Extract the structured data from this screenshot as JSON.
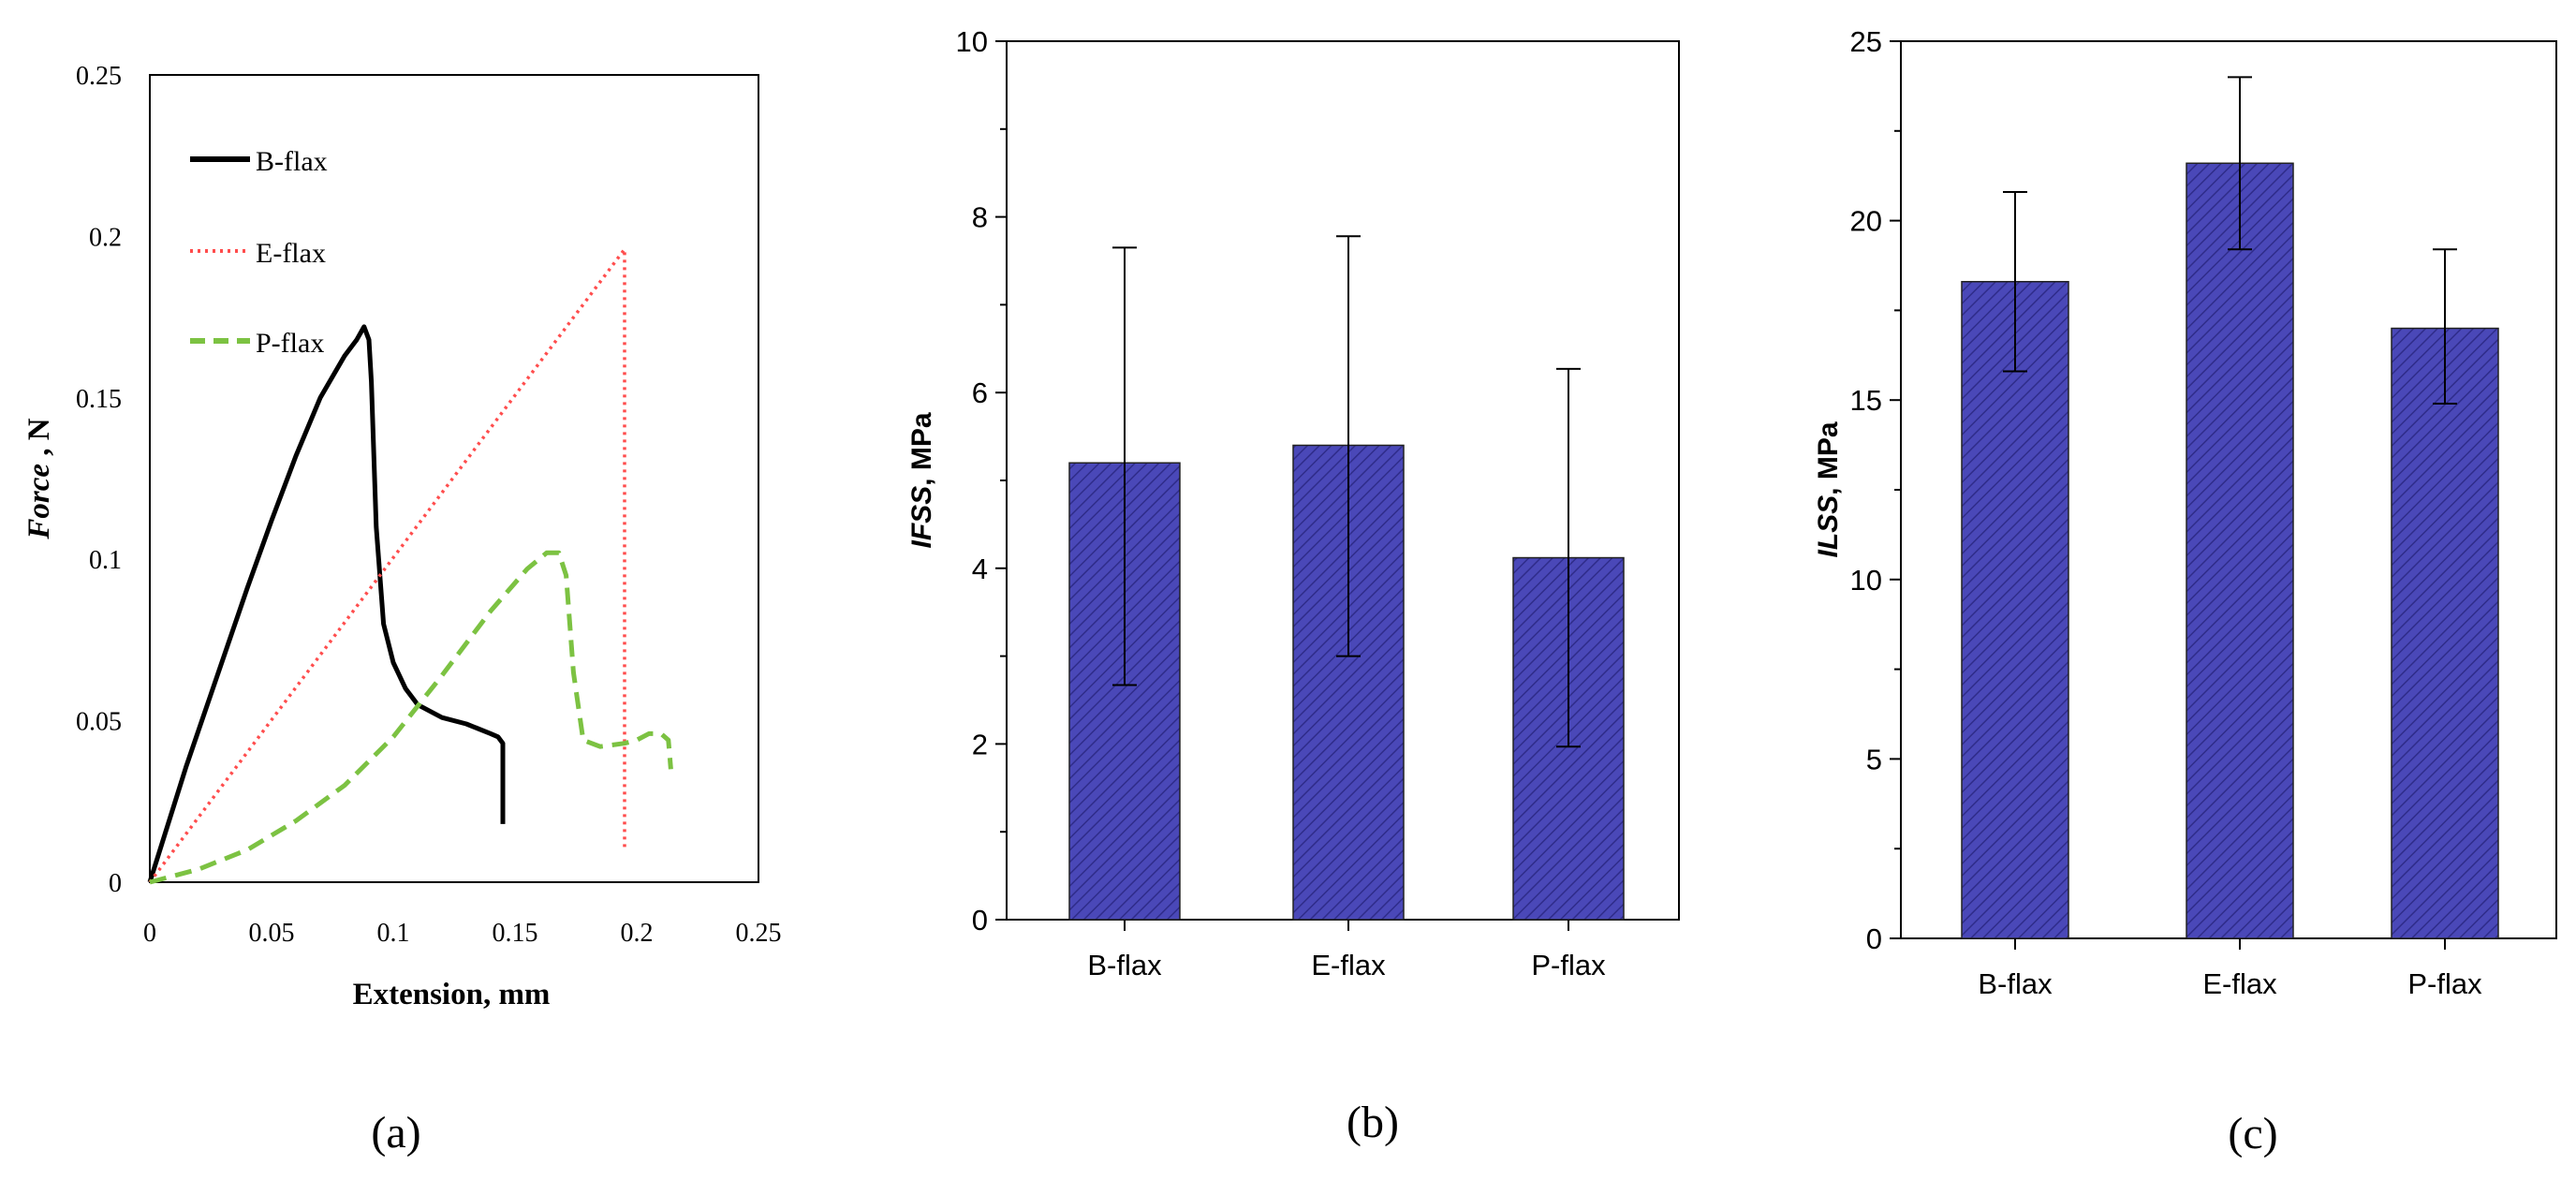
{
  "chart_data": [
    {
      "type": "line",
      "panel_label": "(a)",
      "xlabel": "Extension, mm",
      "ylabel_italic": "Force",
      "ylabel_rest": " , N",
      "xlim": [
        0,
        0.25
      ],
      "ylim": [
        0,
        0.25
      ],
      "xticks": [
        "0",
        "0.05",
        "0.1",
        "0.15",
        "0.2",
        "0.25"
      ],
      "yticks": [
        "0",
        "0.05",
        "0.1",
        "0.15",
        "0.2",
        "0.25"
      ],
      "legend_position": "top-left",
      "series": [
        {
          "name": "B-flax",
          "style": "solid",
          "color": "#000000",
          "x": [
            0,
            0.005,
            0.01,
            0.015,
            0.02,
            0.025,
            0.03,
            0.04,
            0.05,
            0.06,
            0.07,
            0.08,
            0.085,
            0.088,
            0.09,
            0.091,
            0.093,
            0.096,
            0.1,
            0.105,
            0.11,
            0.115,
            0.12,
            0.13,
            0.14,
            0.143,
            0.145,
            0.145
          ],
          "y": [
            0,
            0.012,
            0.024,
            0.036,
            0.047,
            0.058,
            0.069,
            0.091,
            0.112,
            0.132,
            0.15,
            0.163,
            0.168,
            0.172,
            0.168,
            0.155,
            0.11,
            0.08,
            0.068,
            0.06,
            0.055,
            0.053,
            0.051,
            0.049,
            0.046,
            0.045,
            0.043,
            0.018
          ]
        },
        {
          "name": "E-flax",
          "style": "dotted",
          "color": "#ff4d4d",
          "x": [
            0,
            0.195,
            0.195
          ],
          "y": [
            0,
            0.196,
            0.01
          ]
        },
        {
          "name": "P-flax",
          "style": "dashed",
          "color": "#7cc242",
          "x": [
            0,
            0.02,
            0.04,
            0.06,
            0.08,
            0.1,
            0.12,
            0.14,
            0.155,
            0.163,
            0.168,
            0.171,
            0.174,
            0.178,
            0.185,
            0.195,
            0.2,
            0.205,
            0.21,
            0.213,
            0.214
          ],
          "y": [
            0,
            0.004,
            0.01,
            0.019,
            0.03,
            0.045,
            0.064,
            0.084,
            0.097,
            0.102,
            0.102,
            0.095,
            0.065,
            0.044,
            0.042,
            0.043,
            0.044,
            0.046,
            0.046,
            0.044,
            0.035
          ]
        }
      ]
    },
    {
      "type": "bar",
      "panel_label": "(b)",
      "ylabel_italic": "IFSS",
      "ylabel_rest": ", MPa",
      "categories": [
        "B-flax",
        "E-flax",
        "P-flax"
      ],
      "values": [
        5.2,
        5.4,
        4.12
      ],
      "error_low": [
        2.67,
        3.0,
        1.97
      ],
      "error_high": [
        7.65,
        7.78,
        6.27
      ],
      "ylim": [
        0,
        10
      ],
      "yticks": [
        "0",
        "2",
        "4",
        "6",
        "8",
        "10"
      ],
      "bar_color": "#4a48b8"
    },
    {
      "type": "bar",
      "panel_label": "(c)",
      "ylabel_italic": "ILSS",
      "ylabel_rest": ", MPa",
      "categories": [
        "B-flax",
        "E-flax",
        "P-flax"
      ],
      "values": [
        18.3,
        21.6,
        17.0
      ],
      "error_low": [
        15.8,
        19.2,
        14.9
      ],
      "error_high": [
        20.8,
        24.0,
        19.2
      ],
      "ylim": [
        0,
        25
      ],
      "yticks": [
        "0",
        "5",
        "10",
        "15",
        "20",
        "25"
      ],
      "bar_color": "#4a48b8"
    }
  ]
}
